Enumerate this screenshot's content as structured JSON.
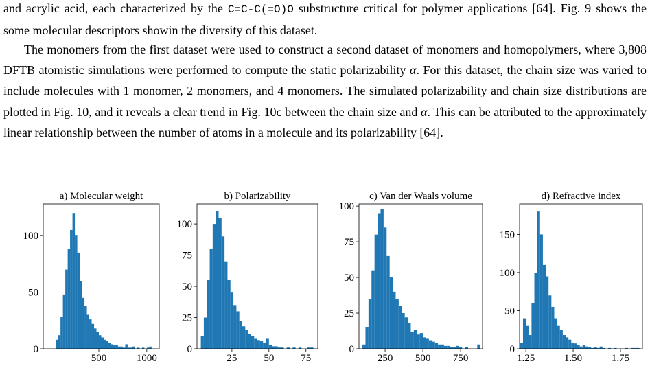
{
  "paragraphs": [
    [
      "and acrylic acid, each characterized by the ",
      "C=C-C(=O)O",
      " substructure critical for polymer applications [64]. Fig. 9 shows the some molecular descriptors showin the diversity of this dataset."
    ],
    [
      "The monomers from the first dataset were used to construct a second dataset of monomers and homopolymers, where 3,808 DFTB atomistic simulations were performed to compute the static polarizability ",
      "α",
      ". For this dataset, the chain size was varied to include molecules with 1 monomer, 2 monomers, and 4 monomers. The simulated polarizability and chain size distributions are plotted in Fig. 10, and it reveals a clear trend in Fig. 10c between the chain size and ",
      "α",
      ". This can be attributed to the approximately linear relationship between the number of atoms in a molecule and its polarizability [64]."
    ]
  ],
  "chart_data": [
    {
      "type": "histogram",
      "title": "a) Molecular weight",
      "color": "#1f77b4",
      "bins": [
        50,
        75,
        100,
        125,
        150,
        175,
        200,
        225,
        250,
        275,
        300,
        325,
        350,
        375,
        400,
        425,
        450,
        475,
        500,
        525,
        550,
        575,
        600,
        625,
        650,
        675,
        700,
        725,
        750,
        775,
        800,
        825,
        850,
        875,
        900,
        925,
        950,
        975,
        1000,
        1025,
        1050
      ],
      "values": [
        8,
        12,
        28,
        48,
        70,
        88,
        105,
        120,
        100,
        85,
        60,
        45,
        38,
        30,
        26,
        22,
        18,
        15,
        12,
        10,
        8,
        7,
        5,
        4,
        3,
        3,
        2,
        2,
        1,
        4,
        1,
        1,
        2,
        0,
        1,
        0,
        1,
        0,
        1,
        2
      ],
      "xlim": [
        -80,
        1130
      ],
      "ylim": [
        0,
        128
      ],
      "xticks": [
        500,
        1000
      ],
      "yticks": [
        0,
        50,
        100
      ]
    },
    {
      "type": "histogram",
      "title": "b) Polarizability",
      "color": "#1f77b4",
      "bins": [
        4,
        6,
        8,
        10,
        12,
        14,
        16,
        18,
        20,
        22,
        24,
        26,
        28,
        30,
        32,
        34,
        36,
        38,
        40,
        42,
        44,
        46,
        48,
        50,
        52,
        54,
        56,
        58,
        60,
        62,
        64,
        66,
        68,
        70,
        72,
        74,
        76,
        78,
        80
      ],
      "values": [
        10,
        25,
        55,
        80,
        100,
        110,
        105,
        90,
        70,
        55,
        45,
        35,
        30,
        22,
        18,
        15,
        12,
        10,
        8,
        7,
        6,
        5,
        8,
        3,
        2,
        2,
        1,
        1,
        0,
        1,
        0,
        1,
        0,
        1,
        0,
        0,
        1,
        1
      ],
      "xlim": [
        1.4,
        83
      ],
      "ylim": [
        0,
        116
      ],
      "xticks": [
        25,
        50,
        75
      ],
      "yticks": [
        0,
        25,
        50,
        75,
        100
      ]
    },
    {
      "type": "histogram",
      "title": "c) Van der Waals volume",
      "color": "#1f77b4",
      "bins": [
        100,
        120,
        140,
        160,
        180,
        200,
        220,
        240,
        260,
        280,
        300,
        320,
        340,
        360,
        380,
        400,
        420,
        440,
        460,
        480,
        500,
        520,
        540,
        560,
        580,
        600,
        620,
        640,
        660,
        680,
        700,
        720,
        740,
        760,
        780,
        800,
        820,
        840,
        860,
        880
      ],
      "values": [
        3,
        15,
        35,
        55,
        80,
        95,
        98,
        85,
        65,
        50,
        40,
        35,
        30,
        25,
        22,
        18,
        12,
        13,
        10,
        11,
        8,
        7,
        6,
        5,
        4,
        3,
        3,
        2,
        2,
        1,
        1,
        2,
        1,
        0,
        1,
        0,
        0,
        0,
        3
      ],
      "xlim": [
        77,
        895
      ],
      "ylim": [
        0,
        101.5
      ],
      "xticks": [
        250,
        500,
        750
      ],
      "yticks": [
        0,
        25,
        50,
        75,
        100
      ]
    },
    {
      "type": "histogram",
      "title": "d) Refractive index",
      "color": "#1f77b4",
      "bins": [
        1.22,
        1.235,
        1.25,
        1.265,
        1.28,
        1.295,
        1.31,
        1.325,
        1.34,
        1.355,
        1.37,
        1.385,
        1.4,
        1.415,
        1.43,
        1.445,
        1.46,
        1.475,
        1.49,
        1.505,
        1.52,
        1.535,
        1.55,
        1.565,
        1.58,
        1.595,
        1.61,
        1.625,
        1.64,
        1.655,
        1.67,
        1.685,
        1.7,
        1.715,
        1.73,
        1.745,
        1.76,
        1.775,
        1.79,
        1.805,
        1.82,
        1.835,
        1.85
      ],
      "values": [
        8,
        40,
        30,
        18,
        60,
        100,
        180,
        150,
        110,
        95,
        70,
        55,
        40,
        30,
        25,
        18,
        15,
        12,
        8,
        7,
        5,
        3,
        5,
        3,
        2,
        1,
        2,
        1,
        3,
        1,
        0,
        1,
        0,
        1,
        0,
        0,
        0,
        1,
        0,
        1,
        1,
        1
      ],
      "xlim": [
        1.217,
        1.866
      ],
      "ylim": [
        0,
        190
      ],
      "xticks": [
        1.25,
        {
          "value": 1.5,
          "label": "1.50"
        },
        1.75
      ],
      "yticks": [
        0,
        50,
        100,
        150
      ]
    }
  ]
}
